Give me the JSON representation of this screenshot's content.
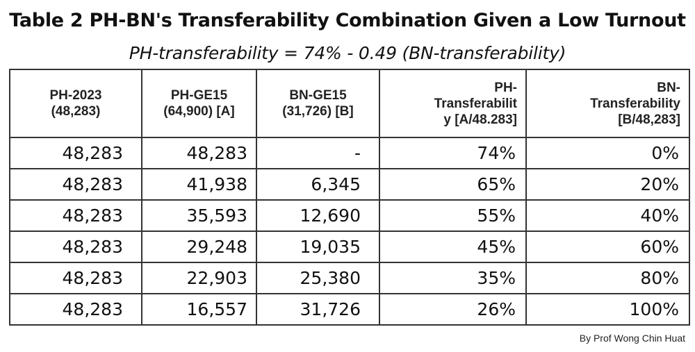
{
  "title": "Table 2 PH-BN's Transferability Combination Given a Low Turnout",
  "subtitle": "PH-transferability = 74% - 0.49 (BN-transferability)",
  "headers": [
    [
      "PH-2023",
      "(48,283)"
    ],
    [
      "PH-GE15",
      "(64,900) [A]"
    ],
    [
      "BN-GE15",
      "(31,726) [B]"
    ],
    [
      "PH-",
      "Transferabilit",
      "y [A/48.283]"
    ],
    [
      "BN-",
      "Transferability",
      "[B/48,283]"
    ]
  ],
  "rows": [
    [
      "48,283",
      "48,283",
      "-",
      "74%",
      "0%"
    ],
    [
      "48,283",
      "41,938",
      "6,345",
      "65%",
      "20%"
    ],
    [
      "48,283",
      "35,593",
      "12,690",
      "55%",
      "40%"
    ],
    [
      "48,283",
      "29,248",
      "19,035",
      "45%",
      "60%"
    ],
    [
      "48,283",
      "22,903",
      "25,380",
      "35%",
      "80%"
    ],
    [
      "48,283",
      "16,557",
      "31,726",
      "26%",
      "100%"
    ]
  ],
  "byline": "By Prof Wong Chin Huat"
}
